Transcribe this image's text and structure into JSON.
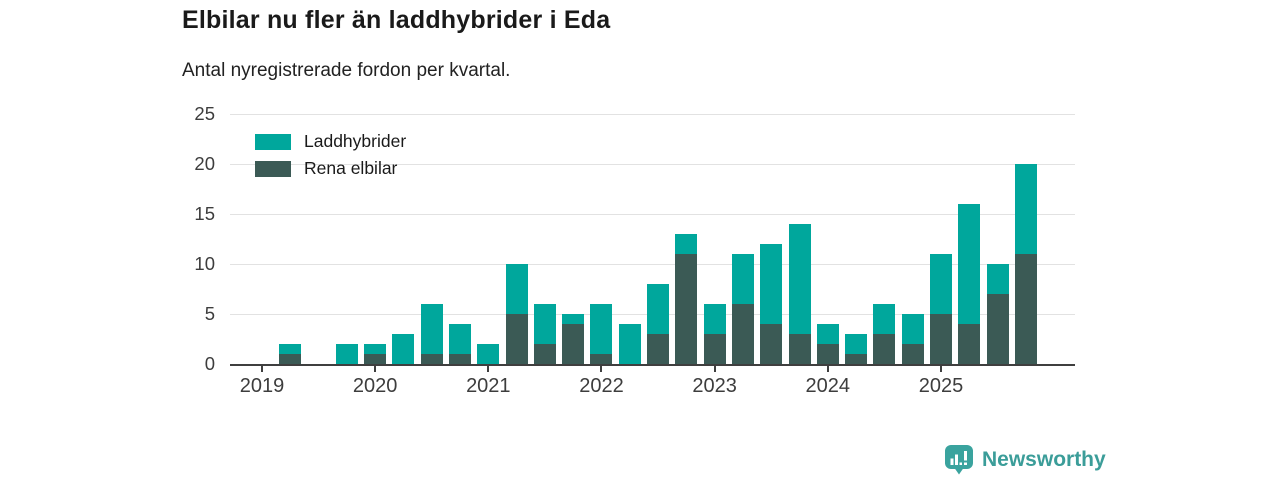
{
  "chart_data": {
    "type": "bar",
    "stacked": true,
    "title": "Elbilar nu fler än laddhybrider i Eda",
    "subtitle": "Antal nyregistrerade fordon per kvartal.",
    "categories": [
      "2019 Q1",
      "2019 Q2",
      "2019 Q3",
      "2019 Q4",
      "2020 Q1",
      "2020 Q2",
      "2020 Q3",
      "2020 Q4",
      "2021 Q1",
      "2021 Q2",
      "2021 Q3",
      "2021 Q4",
      "2022 Q1",
      "2022 Q2",
      "2022 Q3",
      "2022 Q4",
      "2023 Q1",
      "2023 Q2",
      "2023 Q3",
      "2023 Q4",
      "2024 Q1",
      "2024 Q2",
      "2024 Q3",
      "2024 Q4",
      "2025 Q1",
      "2025 Q2",
      "2025 Q3",
      "2025 Q4"
    ],
    "series": [
      {
        "name": "Laddhybrider",
        "color": "#00a79c",
        "values": [
          0,
          1,
          0,
          2,
          1,
          3,
          5,
          3,
          2,
          5,
          4,
          1,
          5,
          4,
          5,
          2,
          3,
          5,
          8,
          11,
          2,
          2,
          3,
          3,
          6,
          12,
          3,
          9
        ]
      },
      {
        "name": "Rena elbilar",
        "color": "#3b5a55",
        "values": [
          0,
          1,
          0,
          0,
          1,
          0,
          1,
          1,
          0,
          5,
          2,
          4,
          1,
          0,
          3,
          11,
          3,
          6,
          4,
          3,
          2,
          1,
          3,
          2,
          5,
          4,
          7,
          11
        ]
      }
    ],
    "totals": [
      0,
      2,
      0,
      2,
      2,
      3,
      6,
      4,
      2,
      10,
      6,
      5,
      6,
      4,
      8,
      13,
      6,
      11,
      12,
      14,
      4,
      3,
      6,
      5,
      11,
      16,
      10,
      20
    ],
    "ylim": [
      0,
      25
    ],
    "yticks": [
      0,
      5,
      10,
      15,
      20,
      25
    ],
    "xticks": [
      "2019",
      "2020",
      "2021",
      "2022",
      "2023",
      "2024",
      "2025"
    ],
    "grid": true,
    "legend_position": "top-left"
  },
  "footer": {
    "brand": "Newsworthy"
  },
  "colors": {
    "axis": "#3f3f3f",
    "grid": "#e2e2e2",
    "brand": "#3b9d99"
  }
}
